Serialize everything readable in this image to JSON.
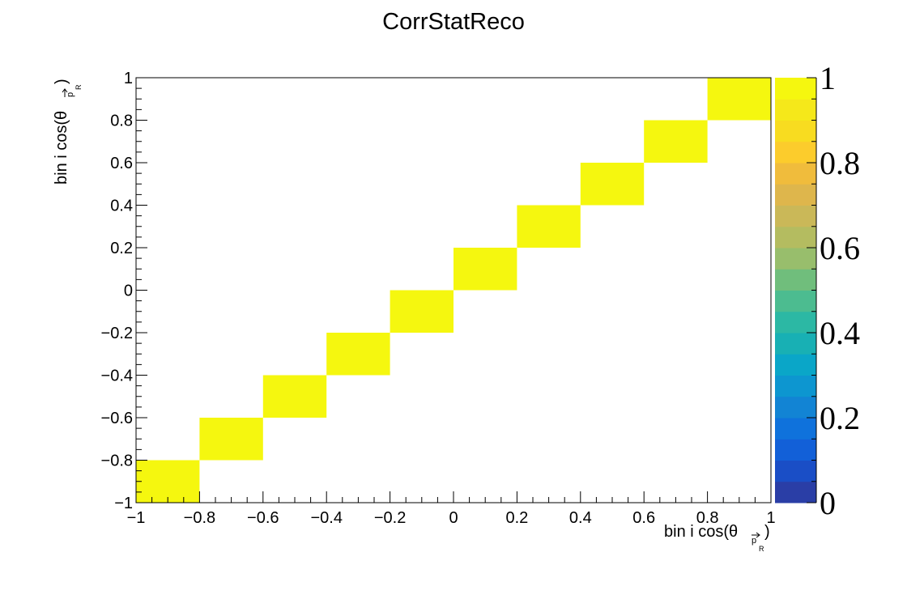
{
  "chart_data": {
    "type": "heatmap",
    "title": "CorrStatReco",
    "xlabel": {
      "prefix": "bin i cos(θ",
      "subscript": "p",
      "subsub": "R",
      "suffix": ")"
    },
    "ylabel": {
      "prefix": "bin i cos(θ",
      "subscript": "p",
      "subsub": "R",
      "suffix": ")"
    },
    "xlim": [
      -1,
      1
    ],
    "ylim": [
      -1,
      1
    ],
    "x_ticks": [
      "−1",
      "−0.8",
      "−0.6",
      "−0.4",
      "−0.2",
      "0",
      "0.2",
      "0.4",
      "0.6",
      "0.8",
      "1"
    ],
    "y_ticks": [
      "−1",
      "−0.8",
      "−0.6",
      "−0.4",
      "−0.2",
      "0",
      "0.2",
      "0.4",
      "0.6",
      "0.8",
      "1"
    ],
    "x_bin_edges": [
      -1,
      -0.8,
      -0.6,
      -0.4,
      -0.2,
      0,
      0.2,
      0.4,
      0.6,
      0.8,
      1
    ],
    "y_bin_edges": [
      -1,
      -0.8,
      -0.6,
      -0.4,
      -0.2,
      0,
      0.2,
      0.4,
      0.6,
      0.8,
      1
    ],
    "cells": [
      {
        "x": [
          -1,
          -0.8
        ],
        "y": [
          -1,
          -0.8
        ],
        "value": 1
      },
      {
        "x": [
          -0.8,
          -0.6
        ],
        "y": [
          -0.8,
          -0.6
        ],
        "value": 1
      },
      {
        "x": [
          -0.6,
          -0.4
        ],
        "y": [
          -0.6,
          -0.4
        ],
        "value": 1
      },
      {
        "x": [
          -0.4,
          -0.2
        ],
        "y": [
          -0.4,
          -0.2
        ],
        "value": 1
      },
      {
        "x": [
          -0.2,
          0
        ],
        "y": [
          -0.2,
          0
        ],
        "value": 1
      },
      {
        "x": [
          0,
          0.2
        ],
        "y": [
          0,
          0.2
        ],
        "value": 1
      },
      {
        "x": [
          0.2,
          0.4
        ],
        "y": [
          0.2,
          0.4
        ],
        "value": 1
      },
      {
        "x": [
          0.4,
          0.6
        ],
        "y": [
          0.4,
          0.6
        ],
        "value": 1
      },
      {
        "x": [
          0.6,
          0.8
        ],
        "y": [
          0.6,
          0.8
        ],
        "value": 1
      },
      {
        "x": [
          0.8,
          1
        ],
        "y": [
          0.8,
          1
        ],
        "value": 1
      }
    ],
    "zlim": [
      0,
      1
    ],
    "color_scale": {
      "labels": [
        "0",
        "0.2",
        "0.4",
        "0.6",
        "0.8",
        "1"
      ],
      "colors": [
        "#2a3ea6",
        "#1a4ec6",
        "#1260d8",
        "#0f72dc",
        "#1284d4",
        "#0d96d0",
        "#0aa6c8",
        "#18b0b4",
        "#2cb8a4",
        "#4cbc90",
        "#70be7c",
        "#98be6c",
        "#b4bc60",
        "#cab858",
        "#deb64c",
        "#f0bc3c",
        "#fccc2c",
        "#f8dc20",
        "#f5e81a",
        "#f5f70f"
      ]
    },
    "cell_color": "#f5f70f",
    "grid": false,
    "legend": "color palette right"
  }
}
